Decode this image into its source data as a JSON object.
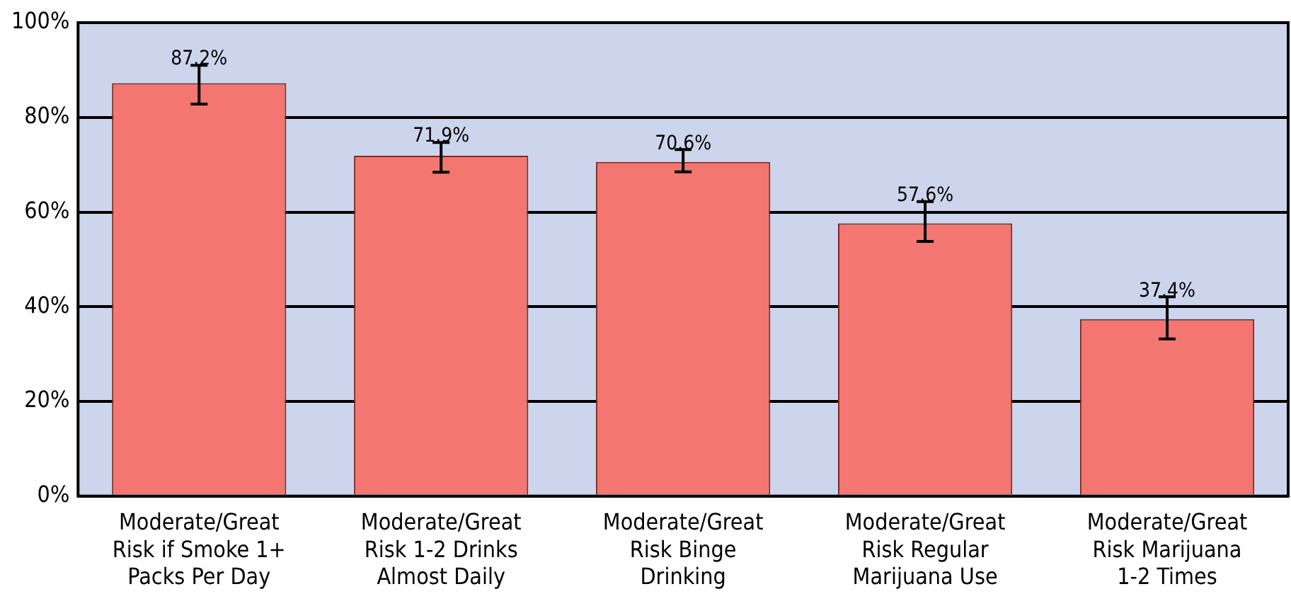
{
  "chart_data": {
    "type": "bar",
    "categories": [
      "Moderate/Great Risk if Smoke 1+ Packs Per Day",
      "Moderate/Great Risk 1-2 Drinks Almost Daily",
      "Moderate/Great Risk Binge Drinking",
      "Moderate/Great Risk Regular Marijuana Use",
      "Moderate/Great Risk Marijuana 1-2 Times"
    ],
    "values": [
      87.2,
      71.9,
      70.6,
      57.6,
      37.4
    ],
    "errors": [
      [
        82.8,
        91.0
      ],
      [
        68.4,
        74.7
      ],
      [
        68.5,
        73.2
      ],
      [
        53.8,
        62.2
      ],
      [
        33.2,
        42.1
      ]
    ],
    "color": "#f37770",
    "ylim": [
      0,
      100
    ],
    "yticks": [
      {
        "value": 0,
        "label": "0%"
      },
      {
        "value": 20,
        "label": "20%"
      },
      {
        "value": 40,
        "label": "40%"
      },
      {
        "value": 60,
        "label": "60%"
      },
      {
        "value": 80,
        "label": "80%"
      },
      {
        "value": 100,
        "label": "100%"
      }
    ],
    "grid": "y",
    "value_labels": [
      "87.2%",
      "71.9%",
      "70.6%",
      "57.6%",
      "37.4%"
    ]
  }
}
